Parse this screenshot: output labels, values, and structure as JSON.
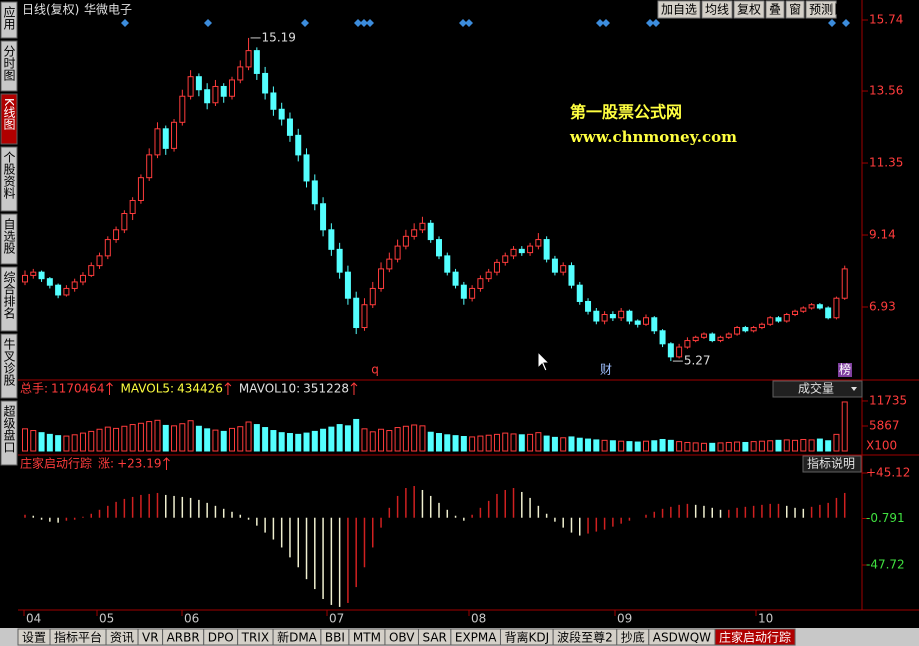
{
  "header": {
    "period": "日线(复权)",
    "stock": "华微电子"
  },
  "toolbar": [
    "加自选",
    "均线",
    "复权",
    "叠",
    "窗",
    "预测"
  ],
  "side_tabs": [
    "应用",
    "分时图",
    "K线图",
    "个股资料",
    "自选股",
    "综合排名",
    "牛叉诊股",
    "超级盘口"
  ],
  "watermark": {
    "title": "第一股票公式网",
    "url": "www.chnmoney.com"
  },
  "price_panel": {
    "type": "candlestick",
    "ylim": [
      4.8,
      15.9
    ],
    "yticks": [
      15.74,
      13.56,
      11.35,
      9.14,
      6.93
    ],
    "high_label": 15.19,
    "low_label": 5.27,
    "markers": [
      "q",
      "财",
      "榜"
    ],
    "ohlc": [
      [
        7.7,
        8.05,
        7.6,
        7.9
      ],
      [
        7.9,
        8.1,
        7.8,
        8.0
      ],
      [
        8.0,
        8.05,
        7.7,
        7.8
      ],
      [
        7.8,
        7.85,
        7.5,
        7.6
      ],
      [
        7.6,
        7.65,
        7.2,
        7.3
      ],
      [
        7.3,
        7.6,
        7.25,
        7.5
      ],
      [
        7.5,
        7.8,
        7.4,
        7.7
      ],
      [
        7.7,
        8.0,
        7.6,
        7.9
      ],
      [
        7.9,
        8.3,
        7.85,
        8.2
      ],
      [
        8.2,
        8.6,
        8.1,
        8.5
      ],
      [
        8.5,
        9.1,
        8.4,
        9.0
      ],
      [
        9.0,
        9.4,
        8.9,
        9.3
      ],
      [
        9.3,
        9.9,
        9.2,
        9.8
      ],
      [
        9.8,
        10.3,
        9.6,
        10.2
      ],
      [
        10.2,
        11.0,
        10.1,
        10.9
      ],
      [
        10.9,
        11.8,
        10.8,
        11.6
      ],
      [
        11.6,
        12.6,
        11.5,
        12.4
      ],
      [
        12.4,
        12.5,
        11.6,
        11.8
      ],
      [
        11.8,
        12.7,
        11.7,
        12.6
      ],
      [
        12.6,
        13.6,
        12.5,
        13.4
      ],
      [
        13.4,
        14.2,
        13.3,
        14.0
      ],
      [
        14.0,
        14.1,
        13.4,
        13.6
      ],
      [
        13.6,
        13.8,
        13.0,
        13.2
      ],
      [
        13.2,
        13.9,
        13.1,
        13.7
      ],
      [
        13.7,
        13.8,
        13.2,
        13.4
      ],
      [
        13.4,
        14.0,
        13.3,
        13.9
      ],
      [
        13.9,
        14.5,
        13.8,
        14.3
      ],
      [
        14.3,
        15.19,
        14.2,
        14.8
      ],
      [
        14.8,
        14.9,
        13.9,
        14.1
      ],
      [
        14.1,
        14.3,
        13.3,
        13.5
      ],
      [
        13.5,
        13.7,
        12.8,
        13.0
      ],
      [
        13.0,
        13.2,
        12.5,
        12.7
      ],
      [
        12.7,
        12.9,
        12.0,
        12.2
      ],
      [
        12.2,
        12.4,
        11.4,
        11.6
      ],
      [
        11.6,
        11.8,
        10.6,
        10.8
      ],
      [
        10.8,
        11.0,
        9.9,
        10.1
      ],
      [
        10.1,
        10.3,
        9.1,
        9.3
      ],
      [
        9.3,
        9.5,
        8.5,
        8.7
      ],
      [
        8.7,
        8.9,
        7.8,
        8.0
      ],
      [
        8.0,
        8.2,
        7.0,
        7.2
      ],
      [
        7.2,
        7.4,
        6.1,
        6.3
      ],
      [
        6.3,
        7.2,
        6.2,
        7.0
      ],
      [
        7.0,
        7.7,
        6.9,
        7.5
      ],
      [
        7.5,
        8.3,
        7.4,
        8.1
      ],
      [
        8.1,
        8.6,
        8.0,
        8.4
      ],
      [
        8.4,
        9.0,
        8.3,
        8.8
      ],
      [
        8.8,
        9.3,
        8.7,
        9.1
      ],
      [
        9.1,
        9.5,
        9.0,
        9.3
      ],
      [
        9.3,
        9.7,
        9.2,
        9.5
      ],
      [
        9.5,
        9.6,
        8.9,
        9.0
      ],
      [
        9.0,
        9.1,
        8.4,
        8.5
      ],
      [
        8.5,
        8.6,
        7.9,
        8.0
      ],
      [
        8.0,
        8.1,
        7.5,
        7.6
      ],
      [
        7.6,
        7.7,
        7.0,
        7.2
      ],
      [
        7.2,
        7.6,
        7.1,
        7.5
      ],
      [
        7.5,
        7.9,
        7.4,
        7.8
      ],
      [
        7.8,
        8.1,
        7.7,
        8.0
      ],
      [
        8.0,
        8.4,
        7.9,
        8.3
      ],
      [
        8.3,
        8.6,
        8.2,
        8.5
      ],
      [
        8.5,
        8.8,
        8.4,
        8.7
      ],
      [
        8.7,
        8.8,
        8.5,
        8.6
      ],
      [
        8.6,
        8.9,
        8.5,
        8.8
      ],
      [
        8.8,
        9.2,
        8.7,
        9.0
      ],
      [
        9.0,
        9.1,
        8.3,
        8.4
      ],
      [
        8.4,
        8.5,
        7.9,
        8.0
      ],
      [
        8.0,
        8.3,
        7.9,
        8.2
      ],
      [
        8.2,
        8.3,
        7.5,
        7.6
      ],
      [
        7.6,
        7.7,
        7.0,
        7.1
      ],
      [
        7.1,
        7.2,
        6.7,
        6.8
      ],
      [
        6.8,
        6.9,
        6.4,
        6.5
      ],
      [
        6.5,
        6.8,
        6.4,
        6.7
      ],
      [
        6.7,
        6.8,
        6.5,
        6.6
      ],
      [
        6.6,
        6.9,
        6.5,
        6.8
      ],
      [
        6.8,
        6.85,
        6.4,
        6.5
      ],
      [
        6.5,
        6.55,
        6.3,
        6.4
      ],
      [
        6.4,
        6.7,
        6.35,
        6.6
      ],
      [
        6.6,
        6.65,
        6.1,
        6.2
      ],
      [
        6.2,
        6.25,
        5.7,
        5.8
      ],
      [
        5.8,
        5.85,
        5.27,
        5.4
      ],
      [
        5.4,
        5.8,
        5.35,
        5.7
      ],
      [
        5.7,
        6.0,
        5.65,
        5.9
      ],
      [
        5.9,
        6.05,
        5.85,
        6.0
      ],
      [
        6.0,
        6.15,
        5.95,
        6.1
      ],
      [
        6.1,
        6.15,
        5.85,
        5.9
      ],
      [
        5.9,
        6.05,
        5.85,
        6.0
      ],
      [
        6.0,
        6.15,
        5.95,
        6.1
      ],
      [
        6.1,
        6.35,
        6.05,
        6.3
      ],
      [
        6.3,
        6.35,
        6.15,
        6.2
      ],
      [
        6.2,
        6.35,
        6.15,
        6.3
      ],
      [
        6.3,
        6.45,
        6.25,
        6.4
      ],
      [
        6.4,
        6.65,
        6.35,
        6.6
      ],
      [
        6.6,
        6.65,
        6.45,
        6.5
      ],
      [
        6.5,
        6.75,
        6.45,
        6.7
      ],
      [
        6.7,
        6.85,
        6.65,
        6.8
      ],
      [
        6.8,
        6.95,
        6.75,
        6.9
      ],
      [
        6.9,
        7.05,
        6.85,
        7.0
      ],
      [
        7.0,
        7.05,
        6.85,
        6.9
      ],
      [
        6.9,
        6.95,
        6.55,
        6.6
      ],
      [
        6.6,
        7.25,
        6.55,
        7.2
      ],
      [
        7.2,
        8.2,
        7.15,
        8.1
      ]
    ]
  },
  "volume_panel": {
    "type": "bar",
    "stats": [
      {
        "label": "总手:",
        "value": 1170464
      },
      {
        "label": "MAVOL5:",
        "value": 434426
      },
      {
        "label": "MAVOL10:",
        "value": 351228
      }
    ],
    "selector": "成交量",
    "ylim": [
      0,
      12900
    ],
    "yticks": [
      11735,
      5867
    ],
    "unit": "X100",
    "values": [
      5200,
      4800,
      4300,
      3900,
      3600,
      3500,
      3800,
      4200,
      4600,
      5100,
      5600,
      5300,
      5800,
      6200,
      6500,
      6900,
      7200,
      6000,
      5900,
      6400,
      7100,
      5800,
      5200,
      4900,
      4600,
      5300,
      5700,
      6800,
      6200,
      5500,
      4800,
      4300,
      4100,
      3900,
      4200,
      4600,
      5100,
      5600,
      6200,
      5900,
      7400,
      5200,
      4500,
      5100,
      4800,
      5500,
      5800,
      6100,
      5900,
      4400,
      4100,
      3800,
      3600,
      3400,
      3300,
      3500,
      3700,
      3900,
      4200,
      4000,
      3800,
      3900,
      4300,
      3500,
      3200,
      3100,
      3300,
      3000,
      2800,
      2600,
      2500,
      2400,
      2300,
      2200,
      2100,
      2300,
      2400,
      2700,
      2500,
      2200,
      2000,
      1900,
      1800,
      1800,
      1900,
      2000,
      2100,
      2000,
      2200,
      2300,
      2400,
      2500,
      2600,
      2500,
      2700,
      2600,
      2800,
      2400,
      3900,
      11500
    ]
  },
  "indicator_panel": {
    "type": "bar",
    "name": "庄家启动行踪",
    "change_label": "涨:",
    "change": "+23.19",
    "button": "指标说明",
    "ylim": [
      -92,
      53
    ],
    "yticks": [
      {
        "value": 45.12,
        "label": "+45.12"
      },
      -0.791,
      -47.72
    ],
    "values": [
      3,
      2,
      -2,
      -4,
      -5,
      -3,
      -2,
      1,
      4,
      8,
      12,
      16,
      19,
      21,
      23,
      24,
      25,
      23,
      22,
      21,
      20,
      18,
      15,
      12,
      9,
      6,
      3,
      -2,
      -8,
      -15,
      -22,
      -30,
      -40,
      -50,
      -62,
      -72,
      -82,
      -88,
      -90,
      -86,
      -70,
      -50,
      -30,
      -10,
      10,
      22,
      30,
      32,
      28,
      22,
      15,
      8,
      2,
      -3,
      3,
      10,
      17,
      24,
      28,
      30,
      26,
      20,
      12,
      4,
      -4,
      -10,
      -15,
      -18,
      -16,
      -14,
      -12,
      -9,
      -6,
      -3,
      0,
      3,
      6,
      9,
      11,
      13,
      14,
      13,
      12,
      10,
      8,
      8,
      10,
      11,
      12,
      13,
      14,
      14,
      12,
      10,
      9,
      11,
      13,
      15,
      20,
      25
    ]
  },
  "months": [
    "04",
    "05",
    "06",
    "07",
    "08",
    "09",
    "10"
  ],
  "bottom_tabs": [
    "设置",
    "指标平台",
    "资讯",
    "VR",
    "ARBR",
    "DPO",
    "TRIX",
    "新DMA",
    "BBI",
    "MTM",
    "OBV",
    "SAR",
    "EXPMA",
    "背离KDJ",
    "波段至尊2",
    "抄底",
    "ASDWQW",
    "庄家启动行踪"
  ]
}
